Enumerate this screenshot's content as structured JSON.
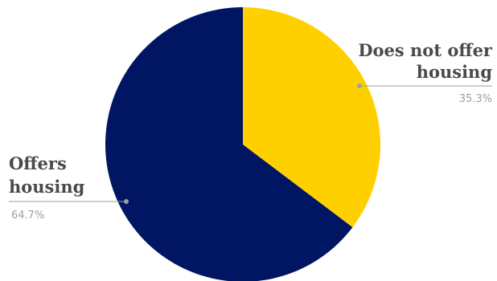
{
  "chart_data": {
    "type": "pie",
    "title": "",
    "start_angle_deg": 0,
    "direction": "clockwise",
    "slices": [
      {
        "label_lines": [
          "Does not offer",
          "housing"
        ],
        "value": 35.3,
        "value_label": "35.3%",
        "color": "#FFD000"
      },
      {
        "label_lines": [
          "Offers",
          "housing"
        ],
        "value": 64.7,
        "value_label": "64.7%",
        "color": "#001663"
      }
    ]
  }
}
